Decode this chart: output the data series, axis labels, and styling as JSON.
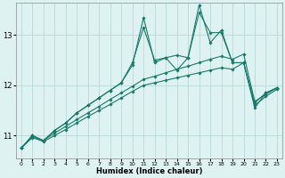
{
  "xlabel": "Humidex (Indice chaleur)",
  "bg_color": "#dff2f2",
  "grid_color": "#b8d8d8",
  "line_color": "#1a7a6a",
  "xlim": [
    -0.5,
    23.5
  ],
  "ylim": [
    10.55,
    13.65
  ],
  "yticks": [
    11,
    12,
    13
  ],
  "xticks": [
    0,
    1,
    2,
    3,
    4,
    5,
    6,
    7,
    8,
    9,
    10,
    11,
    12,
    13,
    14,
    15,
    16,
    17,
    18,
    19,
    20,
    21,
    22,
    23
  ],
  "series": [
    [
      10.75,
      11.0,
      10.9,
      11.1,
      11.25,
      11.45,
      11.6,
      11.75,
      11.9,
      12.05,
      12.45,
      13.15,
      12.5,
      12.55,
      12.6,
      12.55,
      13.45,
      13.05,
      13.05,
      12.45,
      12.45,
      11.65,
      11.85,
      11.95
    ],
    [
      10.75,
      11.0,
      10.9,
      11.1,
      11.25,
      11.45,
      11.6,
      11.75,
      11.9,
      12.05,
      12.4,
      13.35,
      12.45,
      12.55,
      12.3,
      12.55,
      13.6,
      12.85,
      13.1,
      12.45,
      12.45,
      11.55,
      11.85,
      11.95
    ],
    [
      10.75,
      10.98,
      10.9,
      11.05,
      11.18,
      11.32,
      11.45,
      11.58,
      11.72,
      11.85,
      11.98,
      12.12,
      12.18,
      12.25,
      12.32,
      12.38,
      12.45,
      12.52,
      12.58,
      12.52,
      12.62,
      11.68,
      11.82,
      11.95
    ],
    [
      10.75,
      10.96,
      10.88,
      11.0,
      11.12,
      11.25,
      11.38,
      11.5,
      11.62,
      11.75,
      11.88,
      12.0,
      12.05,
      12.1,
      12.15,
      12.2,
      12.25,
      12.3,
      12.35,
      12.32,
      12.45,
      11.6,
      11.78,
      11.92
    ]
  ],
  "figsize": [
    3.2,
    2.0
  ],
  "dpi": 100
}
